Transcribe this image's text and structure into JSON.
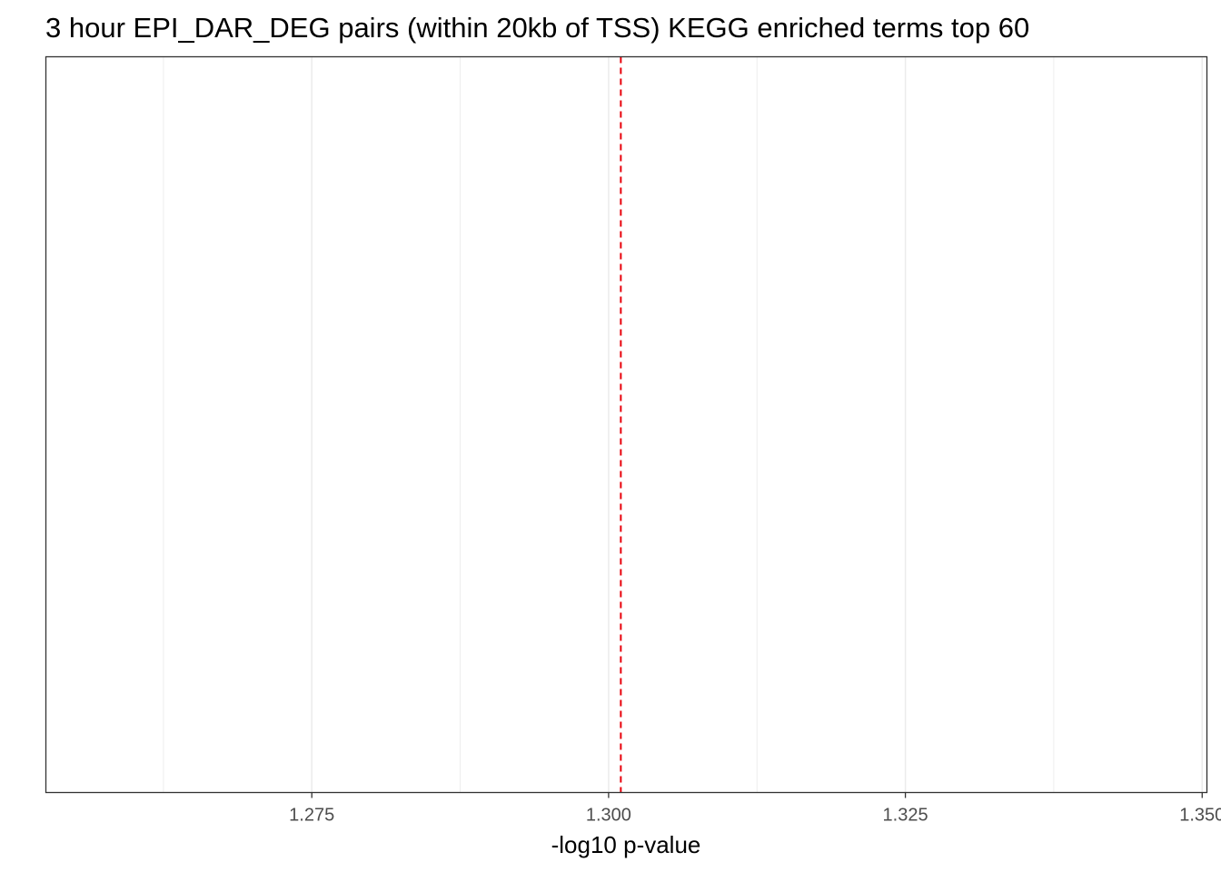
{
  "chart_data": {
    "type": "bar",
    "title": "3 hour EPI_DAR_DEG pairs (within 20kb of TSS) KEGG enriched terms top 60",
    "xlabel": "-log10 p-value",
    "ylabel": "",
    "categories": [],
    "values": [],
    "xlim": [
      1.2526,
      1.3504
    ],
    "x_ticks": [
      "1.275",
      "1.300",
      "1.325",
      "1.350"
    ],
    "x_tick_values": [
      1.275,
      1.3,
      1.325,
      1.35
    ],
    "x_minor_grid": [
      1.2625,
      1.2875,
      1.3125,
      1.3375
    ],
    "reference_line": {
      "x": 1.30103,
      "color": "#e8000b",
      "style": "dashed"
    },
    "grid": true,
    "legend": "none"
  }
}
